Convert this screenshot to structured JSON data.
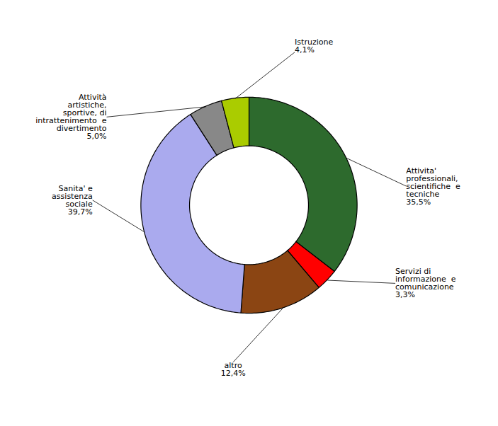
{
  "chart_data": {
    "type": "donut",
    "categories": [
      "Attivita'\nprofessionali,\nscientifiche  e\ntecniche\n35,5%",
      "Servizi di\ninformazione  e\ncomunicazione\n3,3%",
      "altro\n12,4%",
      "Sanita' e\nassistenza\nsociale\n39,7%",
      "Attività\nartistiche,\nsportive, di\nintrattenimento  e\ndivertimento\n5,0%",
      "Istruzione\n4,1%"
    ],
    "values": [
      35.5,
      3.3,
      12.4,
      39.7,
      5.0,
      4.1
    ],
    "colors": [
      "#2d6a2d",
      "#ff0000",
      "#8b4513",
      "#aaaaee",
      "#888888",
      "#aacc00"
    ]
  }
}
